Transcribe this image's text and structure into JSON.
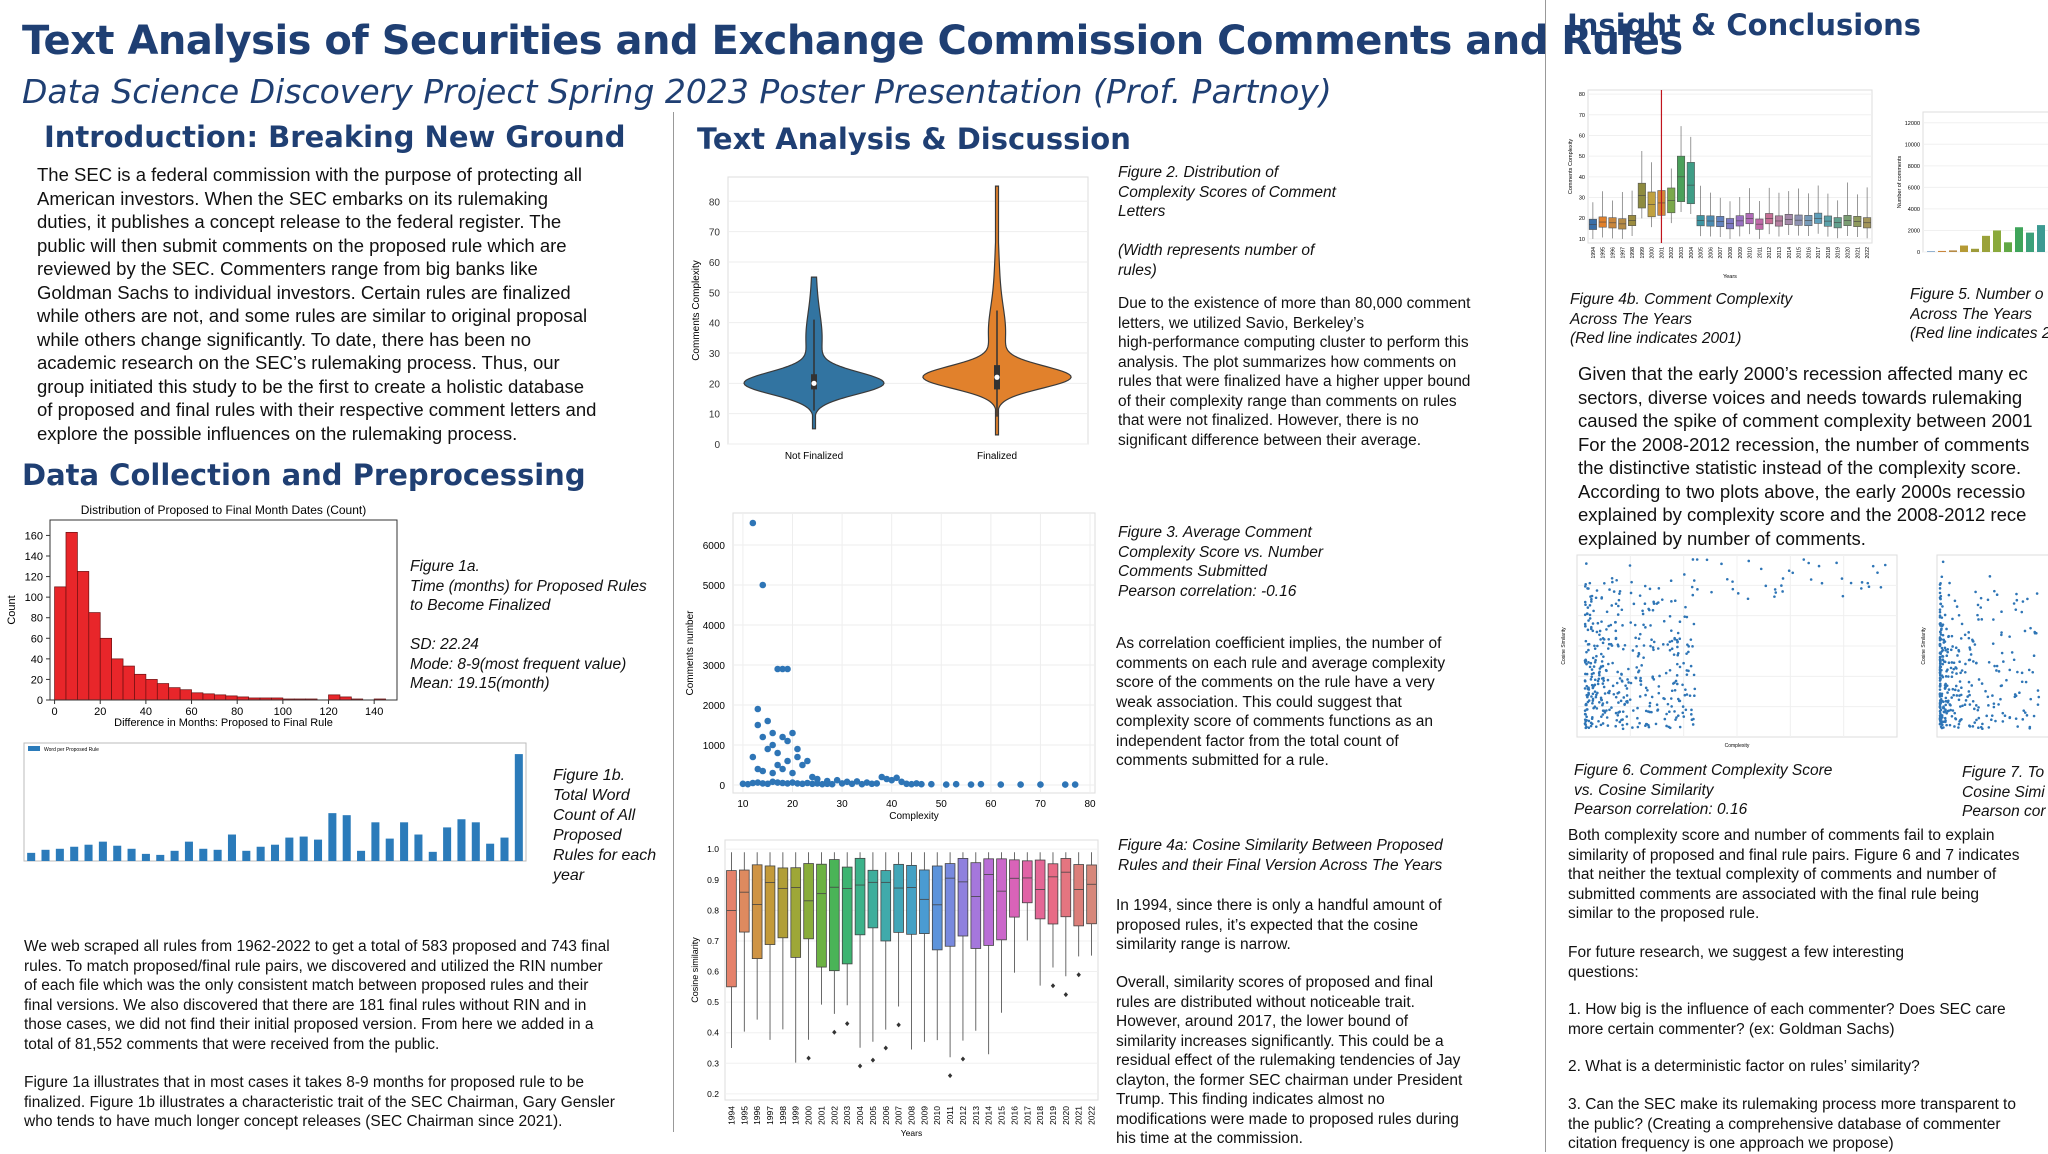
{
  "header": {
    "title": "Text Analysis of Securities and Exchange Commission Comments and Rules",
    "subtitle": "Data Science Discovery Project Spring 2023 Poster Presentation (Prof. Partnoy)"
  },
  "intro": {
    "heading": "Introduction: Breaking New Ground",
    "lines": [
      "The SEC is a federal commission with the purpose of protecting all",
      "American investors. When the SEC embarks on its rulemaking",
      "duties, it publishes a concept release to the federal register. The",
      "public will then submit comments on the proposed rule which are",
      "reviewed by the SEC. Commenters range from big banks like",
      "Goldman Sachs to individual investors. Certain rules are finalized",
      "while others are not, and some rules are similar to original proposal",
      "while others change significantly. To date, there has been no",
      "academic research on the SEC’s rulemaking process. Thus, our",
      "group initiated this study to be the first to create a holistic database",
      "of proposed and final rules with their respective comment letters and",
      "explore the possible influences on the rulemaking process."
    ]
  },
  "collection": {
    "heading": "Data Collection and Preprocessing",
    "fig1a": {
      "caption": [
        "Figure 1a.",
        "Time (months) for Proposed Rules",
        "to Become Finalized",
        "",
        "SD: 22.24",
        "Mode: 8-9(most frequent value)",
        "Mean: 19.15(month)"
      ]
    },
    "fig1b": {
      "caption": [
        "Figure 1b.",
        "Total Word",
        "Count of All",
        "Proposed",
        "Rules for each",
        "year"
      ],
      "legend": "Word per Proposed Rule"
    },
    "para1": [
      "We web scraped  all rules from 1962-2022 to get a total of 583 proposed and 743 final",
      "rules. To match proposed/final rule pairs, we discovered and utilized the RIN number",
      "of each file which was the only consistent match between proposed rules and their",
      "final versions. We also discovered that there are 181 final rules without RIN and in",
      "those cases, we did not find their initial proposed version. From here we added in a",
      "total of 81,552 comments that were received from the public."
    ],
    "para2": [
      "Figure 1a illustrates that in most cases it takes 8-9 months for proposed rule to be",
      "finalized. Figure 1b illustrates a characteristic trait of the SEC Chairman, Gary Gensler",
      "who tends to have much longer concept releases (SEC Chairman since 2021)."
    ]
  },
  "analysis": {
    "heading": "Text Analysis & Discussion",
    "fig2": {
      "caption": [
        "Figure 2. Distribution of",
        "Complexity Scores of Comment",
        "Letters",
        "",
        "(Width represents number of",
        "rules)"
      ],
      "text": [
        "Due to the existence of more than 80,000 comment",
        "letters, we utilized Savio, Berkeley’s",
        "high-performance computing cluster to perform this",
        "analysis. The plot summarizes how comments on",
        "rules that were finalized have a higher upper bound",
        "of their complexity range than comments on rules",
        "that were not finalized. However, there is no",
        "significant difference between their average."
      ]
    },
    "fig3": {
      "caption": [
        "Figure 3. Average Comment",
        "Complexity Score vs. Number",
        "Comments Submitted",
        "Pearson correlation: -0.16"
      ],
      "text": [
        "As correlation coefficient implies, the number of",
        "comments on each rule and average complexity",
        "score of the comments on the rule have a very",
        "weak association. This could suggest that",
        "complexity score of comments functions as an",
        "independent factor from the total count of",
        "comments submitted for a rule."
      ]
    },
    "fig4a": {
      "caption": [
        "Figure 4a: Cosine Similarity Between Proposed",
        "Rules and their Final Version Across The Years"
      ],
      "text1": [
        "In 1994, since there is only a handful amount of",
        "proposed rules, it’s expected that the cosine",
        "similarity range is narrow."
      ],
      "text2": [
        "Overall, similarity scores of proposed and final",
        "rules are distributed without noticeable trait.",
        "However, around 2017, the lower bound of",
        "similarity increases significantly. This could be a",
        "residual effect of the rulemaking tendencies of Jay",
        "clayton, the former SEC chairman under President",
        "Trump. This finding indicates almost no",
        "modifications were made to proposed rules during",
        "his time at the commission."
      ]
    }
  },
  "insight": {
    "heading": "Insight & Conclusions",
    "fig4b": {
      "caption": [
        "Figure 4b. Comment Complexity",
        "Across The Years",
        "(Red line indicates 2001)"
      ]
    },
    "fig5": {
      "caption": [
        "Figure 5. Number o",
        "Across The Years",
        "(Red line indicates 2"
      ]
    },
    "para1": [
      "Given that the early 2000’s recession affected many ec",
      "sectors, diverse voices and needs towards rulemaking",
      "caused the spike of comment complexity between 2001",
      "For the 2008-2012 recession, the number of comments",
      "the distinctive statistic instead of the complexity score.",
      "According to two plots above, the early 2000s recessio",
      "explained by complexity score and the 2008-2012 rece",
      "explained by number of comments."
    ],
    "fig6": {
      "caption": [
        "Figure 6. Comment Complexity Score",
        "vs. Cosine Similarity",
        "Pearson correlation: 0.16"
      ]
    },
    "fig7": {
      "caption": [
        "Figure 7. To",
        "Cosine Simi",
        "Pearson cor"
      ]
    },
    "para2": [
      "Both complexity score and number of comments fail to explain",
      "similarity of proposed and final rule pairs. Figure 6 and 7 indicates",
      "that neither the textual complexity of comments and number of",
      "submitted comments are associated with the final rule being",
      "similar to the proposed rule."
    ],
    "para3": [
      "For future research, we suggest a few interesting",
      "questions:"
    ],
    "q1": [
      "1.  How big is the influence of each commenter? Does SEC care",
      "more certain commenter? (ex: Goldman Sachs)"
    ],
    "q2": [
      "2. What is a deterministic factor on rules’ similarity?"
    ],
    "q3": [
      "3. Can the SEC make its rulemaking process more transparent to",
      "the public? (Creating a comprehensive database of commenter",
      "citation frequency is one approach we propose)"
    ]
  },
  "chart_data": [
    {
      "id": "fig1a",
      "type": "bar",
      "title": "Distribution of Proposed to Final Month Dates (Count)",
      "xlabel": "Difference in Months: Proposed to Final Rule",
      "ylabel": "Count",
      "bin_width": 5,
      "x_start": 0,
      "values": [
        110,
        163,
        125,
        85,
        60,
        40,
        33,
        25,
        20,
        16,
        12,
        10,
        7,
        6,
        5,
        4,
        3,
        2,
        2,
        2,
        1,
        1,
        1,
        0,
        5,
        3,
        1,
        0,
        1
      ],
      "xticks": [
        0,
        20,
        40,
        60,
        80,
        100,
        120,
        140
      ],
      "yticks": [
        0,
        20,
        40,
        60,
        80,
        100,
        120,
        140,
        160
      ],
      "xlim": [
        -2,
        150
      ],
      "ylim": [
        0,
        175
      ],
      "color": "#e8262a"
    },
    {
      "id": "fig1b",
      "type": "bar",
      "legend": "Word per Proposed Rule",
      "values": [
        0.8,
        1.1,
        1.2,
        1.4,
        1.6,
        1.9,
        1.5,
        1.2,
        0.7,
        0.6,
        1.0,
        1.9,
        1.2,
        1.1,
        2.6,
        1.0,
        1.4,
        1.6,
        2.3,
        2.4,
        2.1,
        4.7,
        4.5,
        1.0,
        3.8,
        2.2,
        3.8,
        2.6,
        0.9,
        3.3,
        4.1,
        3.8,
        1.7,
        2.3,
        10.5
      ],
      "ylim": [
        0,
        11
      ],
      "color": "#2b7bba"
    },
    {
      "id": "fig2",
      "type": "violin",
      "categories": [
        "Not Finalized",
        "Finalized"
      ],
      "series": [
        {
          "name": "Not Finalized",
          "min": 5,
          "q1": 18,
          "median": 20,
          "q3": 23,
          "max": 55,
          "color": "#3274a1"
        },
        {
          "name": "Finalized",
          "min": 3,
          "q1": 18,
          "median": 22,
          "q3": 26,
          "max": 85,
          "color": "#e1812c"
        }
      ],
      "ylabel": "Comments Complexity",
      "yticks": [
        0,
        10,
        20,
        30,
        40,
        50,
        60,
        70,
        80
      ],
      "ylim": [
        0,
        88
      ]
    },
    {
      "id": "fig3",
      "type": "scatter",
      "xlabel": "Complexity",
      "ylabel": "Comments number",
      "xticks": [
        10,
        20,
        30,
        40,
        50,
        60,
        70,
        80
      ],
      "yticks": [
        0,
        1000,
        2000,
        3000,
        4000,
        5000,
        6000
      ],
      "xlim": [
        8,
        81
      ],
      "ylim": [
        -200,
        6800
      ],
      "points": [
        [
          12,
          6550
        ],
        [
          14,
          5000
        ],
        [
          17,
          2900
        ],
        [
          18,
          2900
        ],
        [
          19,
          2900
        ],
        [
          13,
          1900
        ],
        [
          13,
          1500
        ],
        [
          14,
          1200
        ],
        [
          16,
          1300
        ],
        [
          18,
          1200
        ],
        [
          19,
          1100
        ],
        [
          20,
          1300
        ],
        [
          15,
          900
        ],
        [
          17,
          800
        ],
        [
          21,
          700
        ],
        [
          22,
          500
        ],
        [
          12,
          700
        ],
        [
          13,
          400
        ],
        [
          14,
          350
        ],
        [
          16,
          300
        ],
        [
          18,
          400
        ],
        [
          20,
          300
        ],
        [
          24,
          200
        ],
        [
          25,
          150
        ],
        [
          27,
          100
        ],
        [
          29,
          120
        ],
        [
          31,
          80
        ],
        [
          33,
          90
        ],
        [
          35,
          60
        ],
        [
          38,
          200
        ],
        [
          39,
          150
        ],
        [
          40,
          120
        ],
        [
          41,
          180
        ],
        [
          42,
          80
        ],
        [
          45,
          40
        ],
        [
          48,
          20
        ],
        [
          51,
          10
        ],
        [
          53,
          20
        ],
        [
          56,
          10
        ],
        [
          58,
          20
        ],
        [
          62,
          10
        ],
        [
          66,
          10
        ],
        [
          70,
          10
        ],
        [
          75,
          10
        ],
        [
          77,
          10
        ],
        [
          10,
          30
        ],
        [
          11,
          20
        ],
        [
          12,
          50
        ],
        [
          13,
          60
        ],
        [
          14,
          40
        ],
        [
          15,
          30
        ],
        [
          16,
          80
        ],
        [
          17,
          60
        ],
        [
          18,
          50
        ],
        [
          19,
          40
        ],
        [
          20,
          60
        ],
        [
          21,
          40
        ],
        [
          22,
          30
        ],
        [
          23,
          50
        ],
        [
          24,
          30
        ],
        [
          25,
          40
        ],
        [
          26,
          20
        ],
        [
          27,
          30
        ],
        [
          28,
          20
        ],
        [
          30,
          40
        ],
        [
          32,
          30
        ],
        [
          34,
          20
        ],
        [
          36,
          30
        ],
        [
          37,
          40
        ],
        [
          43,
          30
        ],
        [
          44,
          20
        ],
        [
          46,
          20
        ],
        [
          15,
          1600
        ],
        [
          16,
          1000
        ],
        [
          19,
          600
        ],
        [
          21,
          900
        ],
        [
          23,
          600
        ],
        [
          17,
          500
        ]
      ]
    },
    {
      "id": "fig4a",
      "type": "box",
      "xlabel": "Years",
      "ylabel": "Cosine similarity",
      "categories": [
        "1994",
        "1995",
        "1996",
        "1997",
        "1998",
        "1999",
        "2000",
        "2001",
        "2002",
        "2003",
        "2004",
        "2005",
        "2006",
        "2007",
        "2008",
        "2009",
        "2010",
        "2011",
        "2012",
        "2013",
        "2014",
        "2015",
        "2016",
        "2017",
        "2018",
        "2019",
        "2020",
        "2021",
        "2022"
      ],
      "yticks": [
        0.2,
        0.3,
        0.4,
        0.5,
        0.6,
        0.7,
        0.8,
        0.9,
        1.0
      ],
      "ylim": [
        0.18,
        1.03
      ]
    },
    {
      "id": "fig4b",
      "type": "box",
      "xlabel": "Years",
      "ylabel": "Comments Complexity",
      "yticks": [
        10,
        20,
        30,
        40,
        50,
        60,
        70,
        80
      ],
      "ylim": [
        8,
        82
      ]
    },
    {
      "id": "fig5",
      "type": "bar",
      "ylabel": "Number of comments",
      "yticks": [
        0,
        2000,
        4000,
        6000,
        8000,
        10000,
        12000
      ],
      "ylim": [
        0,
        13000
      ]
    },
    {
      "id": "fig6",
      "type": "scatter",
      "xlabel": "Complexity",
      "ylabel": "Cosine Similarity"
    },
    {
      "id": "fig7",
      "type": "scatter",
      "ylabel": "Cosine Similarity"
    }
  ]
}
